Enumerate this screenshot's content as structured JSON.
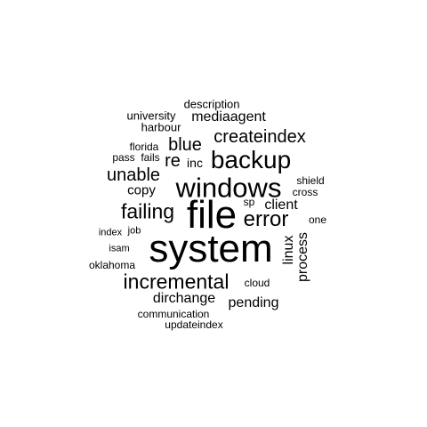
{
  "words": [
    {
      "text": "description",
      "weight": 1
    },
    {
      "text": "university",
      "weight": 1
    },
    {
      "text": "mediaagent",
      "weight": 3
    },
    {
      "text": "harbour",
      "weight": 1
    },
    {
      "text": "createindex",
      "weight": 4
    },
    {
      "text": "blue",
      "weight": 4
    },
    {
      "text": "florida",
      "weight": 1
    },
    {
      "text": "pass",
      "weight": 1
    },
    {
      "text": "fails",
      "weight": 1
    },
    {
      "text": "re",
      "weight": 4
    },
    {
      "text": "inc",
      "weight": 2
    },
    {
      "text": "backup",
      "weight": 6
    },
    {
      "text": "unable",
      "weight": 4
    },
    {
      "text": "windows",
      "weight": 7
    },
    {
      "text": "shield",
      "weight": 1
    },
    {
      "text": "copy",
      "weight": 3
    },
    {
      "text": "cross",
      "weight": 1
    },
    {
      "text": "sp",
      "weight": 1
    },
    {
      "text": "client",
      "weight": 3
    },
    {
      "text": "failing",
      "weight": 5
    },
    {
      "text": "file",
      "weight": 9
    },
    {
      "text": "error",
      "weight": 5
    },
    {
      "text": "one",
      "weight": 1
    },
    {
      "text": "index",
      "weight": 1
    },
    {
      "text": "job",
      "weight": 1
    },
    {
      "text": "linux",
      "weight": 3
    },
    {
      "text": "process",
      "weight": 3
    },
    {
      "text": "isam",
      "weight": 1
    },
    {
      "text": "system",
      "weight": 10
    },
    {
      "text": "oklahoma",
      "weight": 1
    },
    {
      "text": "incremental",
      "weight": 5
    },
    {
      "text": "cloud",
      "weight": 1
    },
    {
      "text": "dirchange",
      "weight": 3
    },
    {
      "text": "pending",
      "weight": 3
    },
    {
      "text": "communication",
      "weight": 1
    },
    {
      "text": "updateindex",
      "weight": 1
    }
  ]
}
